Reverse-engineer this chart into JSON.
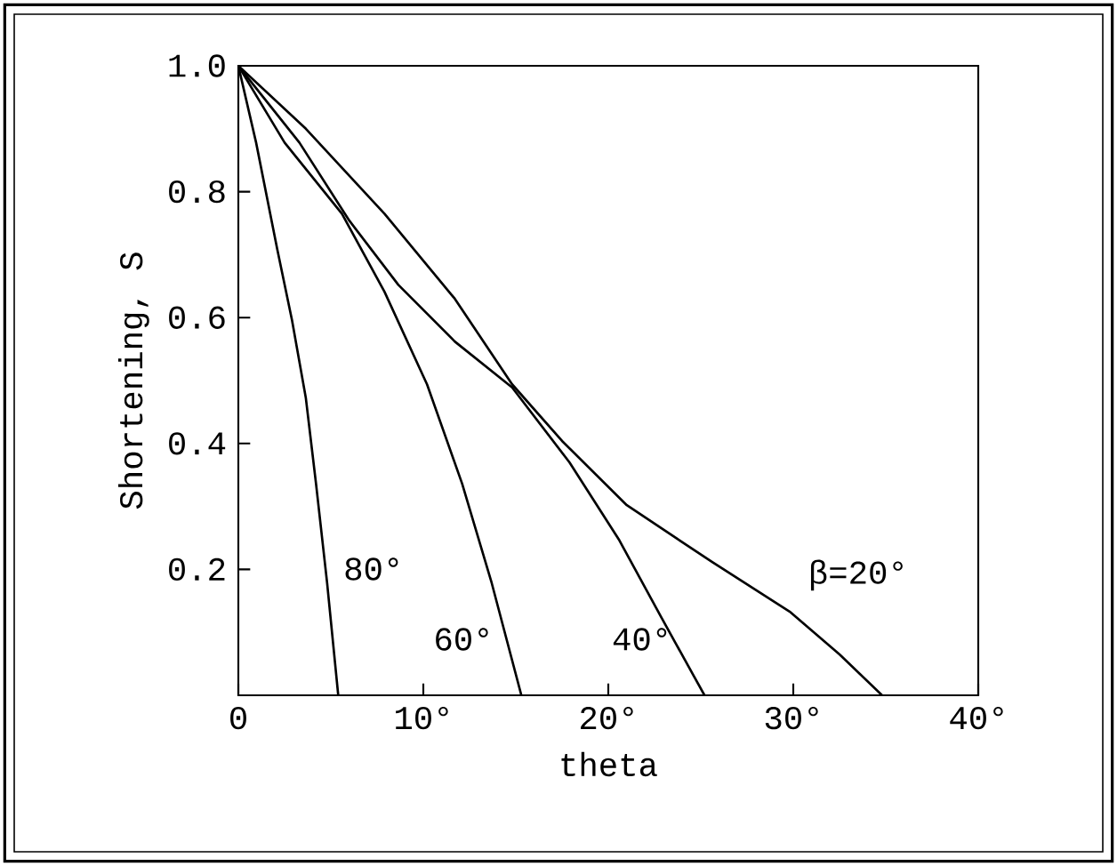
{
  "chart_data": {
    "type": "line",
    "xlabel": "theta",
    "ylabel": "Shortening, S",
    "xlim": [
      0,
      40
    ],
    "ylim": [
      0,
      1
    ],
    "xticks": [
      0,
      {
        "value": 10,
        "label": "10°"
      },
      {
        "value": 20,
        "label": "20°"
      },
      {
        "value": 30,
        "label": "30°"
      },
      {
        "value": 40,
        "label": "40°"
      }
    ],
    "yticks": [
      0.2,
      0.4,
      0.6,
      0.8,
      {
        "value": 1,
        "label": "1.0"
      }
    ],
    "series": [
      {
        "name": "80°",
        "color": "#000000",
        "x": [
          0,
          0.96,
          2.1,
          2.9,
          3.65,
          4.2,
          4.8,
          5.4
        ],
        "values": [
          1,
          0.878,
          0.709,
          0.596,
          0.472,
          0.336,
          0.178,
          0
        ]
      },
      {
        "name": "60°",
        "color": "#000000",
        "x": [
          0,
          2.5,
          5.6,
          7.9,
          10.2,
          12.1,
          13.7,
          15.3
        ],
        "values": [
          1,
          0.878,
          0.765,
          0.641,
          0.494,
          0.336,
          0.178,
          0
        ]
      },
      {
        "name": "40°",
        "color": "#000000",
        "x": [
          0,
          3.3,
          6,
          8.65,
          11.7,
          14.8,
          17.9,
          20.6,
          22.9,
          25.2
        ],
        "values": [
          1,
          0.878,
          0.754,
          0.652,
          0.562,
          0.489,
          0.37,
          0.246,
          0.122,
          0
        ]
      },
      {
        "name": "β=20°",
        "color": "#000000",
        "x": [
          0,
          3.65,
          7.9,
          11.7,
          14.8,
          17.5,
          21,
          25.6,
          29.8,
          32.5,
          34.8
        ],
        "values": [
          1,
          0.9,
          0.765,
          0.63,
          0.494,
          0.404,
          0.302,
          0.212,
          0.133,
          0.065,
          0
        ]
      }
    ],
    "grid": false,
    "legend": false,
    "marker": "none",
    "line_style": "solid"
  }
}
